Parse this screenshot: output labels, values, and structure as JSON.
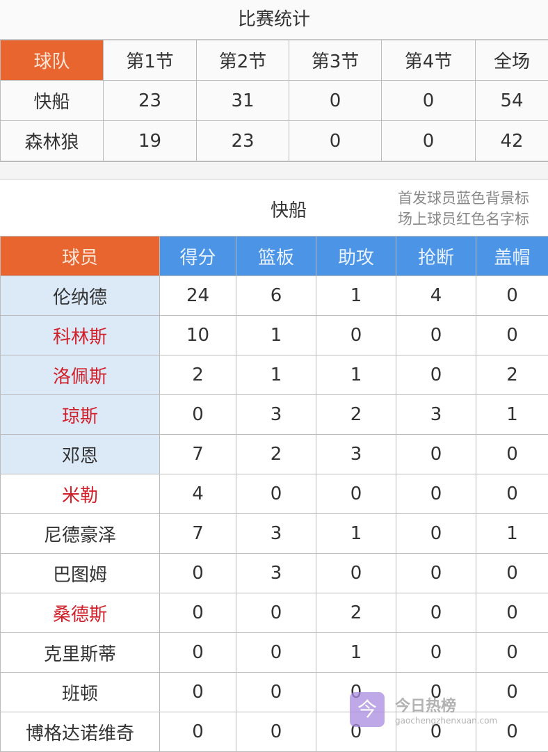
{
  "title": "比赛统计",
  "score_table": {
    "headers": [
      "球队",
      "第1节",
      "第2节",
      "第3节",
      "第4节",
      "全场"
    ],
    "rows": [
      [
        "快船",
        "23",
        "31",
        "0",
        "0",
        "54"
      ],
      [
        "森林狼",
        "19",
        "23",
        "0",
        "0",
        "42"
      ]
    ]
  },
  "team_section": {
    "team_name": "快船",
    "note_line1": "首发球员蓝色背景标",
    "note_line2": "场上球员红色名字标"
  },
  "player_table": {
    "headers": [
      "球员",
      "得分",
      "篮板",
      "助攻",
      "抢断",
      "盖帽"
    ],
    "rows": [
      {
        "name": "伦纳德",
        "starter": true,
        "on_court": false,
        "stats": [
          "24",
          "6",
          "1",
          "4",
          "0"
        ]
      },
      {
        "name": "科林斯",
        "starter": true,
        "on_court": true,
        "stats": [
          "10",
          "1",
          "0",
          "0",
          "0"
        ]
      },
      {
        "name": "洛佩斯",
        "starter": true,
        "on_court": true,
        "stats": [
          "2",
          "1",
          "1",
          "0",
          "2"
        ]
      },
      {
        "name": "琼斯",
        "starter": true,
        "on_court": true,
        "stats": [
          "0",
          "3",
          "2",
          "3",
          "1"
        ]
      },
      {
        "name": "邓恩",
        "starter": true,
        "on_court": false,
        "stats": [
          "7",
          "2",
          "3",
          "0",
          "0"
        ]
      },
      {
        "name": "米勒",
        "starter": false,
        "on_court": true,
        "stats": [
          "4",
          "0",
          "0",
          "0",
          "0"
        ]
      },
      {
        "name": "尼德豪泽",
        "starter": false,
        "on_court": false,
        "stats": [
          "7",
          "3",
          "1",
          "0",
          "1"
        ]
      },
      {
        "name": "巴图姆",
        "starter": false,
        "on_court": false,
        "stats": [
          "0",
          "3",
          "0",
          "0",
          "0"
        ]
      },
      {
        "name": "桑德斯",
        "starter": false,
        "on_court": true,
        "stats": [
          "0",
          "0",
          "2",
          "0",
          "0"
        ]
      },
      {
        "name": "克里斯蒂",
        "starter": false,
        "on_court": false,
        "stats": [
          "0",
          "0",
          "1",
          "0",
          "0"
        ]
      },
      {
        "name": "班顿",
        "starter": false,
        "on_court": false,
        "stats": [
          "0",
          "0",
          "0",
          "0",
          "0"
        ]
      },
      {
        "name": "博格达诺维奇",
        "starter": false,
        "on_court": false,
        "stats": [
          "0",
          "0",
          "0",
          "0",
          "0"
        ]
      }
    ]
  },
  "watermark": {
    "logo_char": "今",
    "text": "今日热榜",
    "url": "gaochengzhenxuan.com"
  },
  "colors": {
    "orange": "#e9652f",
    "blue": "#4c94e6",
    "starter_bg": "#dceaf8",
    "on_court_text": "#d0202a"
  }
}
